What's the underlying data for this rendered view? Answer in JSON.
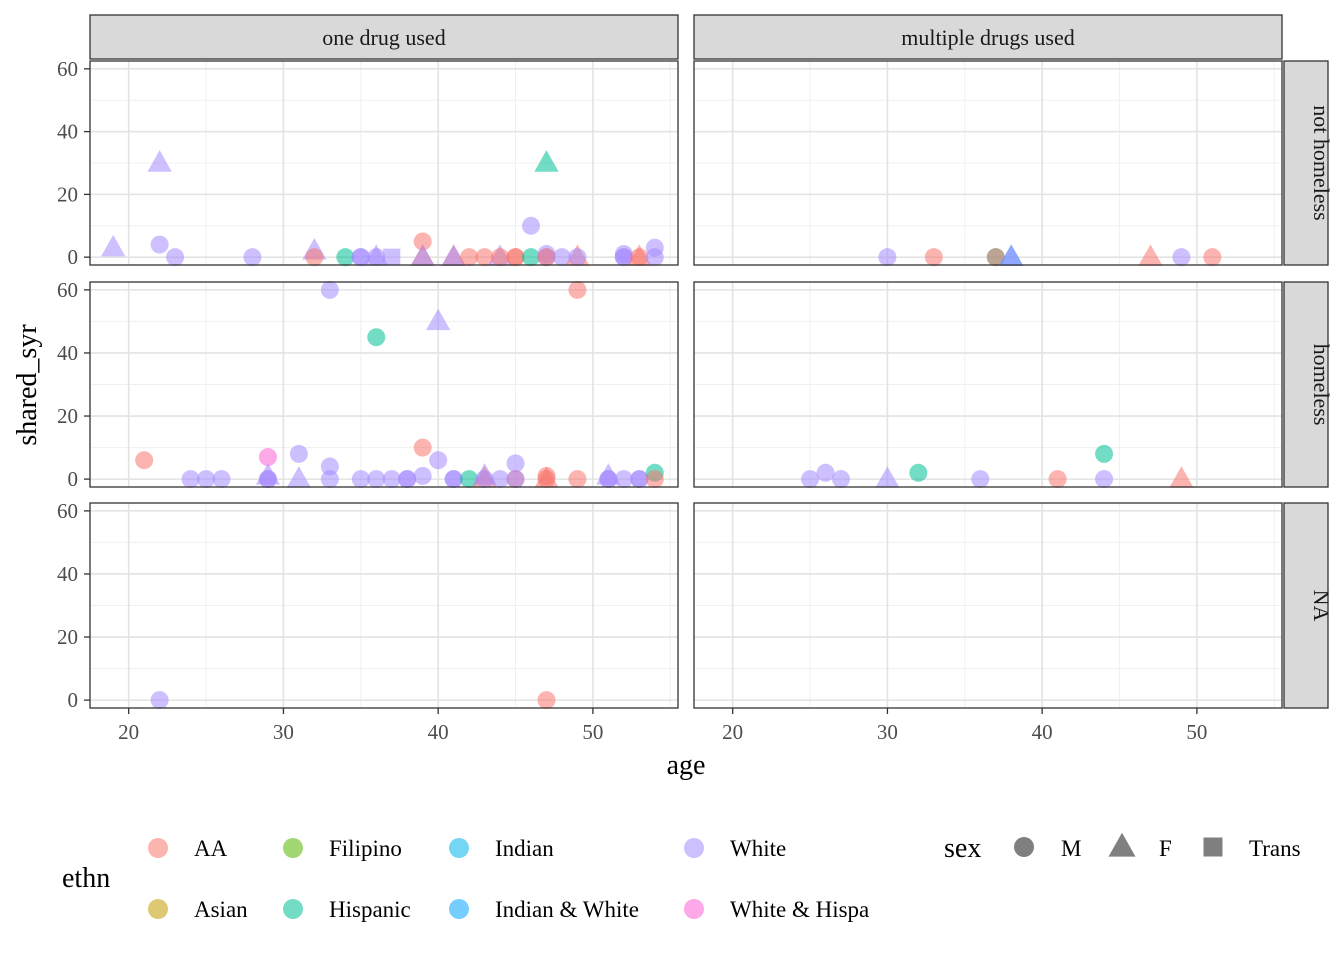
{
  "chart_data": {
    "type": "scatter",
    "xlabel": "age",
    "ylabel": "shared_syr",
    "xlim": [
      17.5,
      55.5
    ],
    "ylim": [
      -2.5,
      62.5
    ],
    "x_ticks": [
      20,
      30,
      40,
      50
    ],
    "y_ticks": [
      0,
      20,
      40,
      60
    ],
    "grid": true,
    "point_alpha": 0.55,
    "facet_cols": [
      "one drug used",
      "multiple drugs used"
    ],
    "facet_rows": [
      "not homeless",
      "homeless",
      "NA"
    ],
    "color_legend": {
      "title": "ethn",
      "position": "bottom",
      "items": [
        {
          "label": "AA",
          "color": "#F8766D"
        },
        {
          "label": "Asian",
          "color": "#C49A00"
        },
        {
          "label": "Filipino",
          "color": "#53B400"
        },
        {
          "label": "Hispanic",
          "color": "#00C094"
        },
        {
          "label": "Indian",
          "color": "#00B6EB"
        },
        {
          "label": "Indian & White",
          "color": "#06A4FF"
        },
        {
          "label": "White",
          "color": "#A58AFF"
        },
        {
          "label": "White & Hispa",
          "color": "#FB61D7"
        }
      ]
    },
    "shape_legend": {
      "title": "sex",
      "items": [
        {
          "label": "M",
          "shape": "circle"
        },
        {
          "label": "F",
          "shape": "triangle"
        },
        {
          "label": "Trans",
          "shape": "square"
        }
      ]
    },
    "panels": [
      {
        "col": 0,
        "row": 0,
        "points": [
          {
            "x": 19,
            "y": 3,
            "e": "White",
            "s": "F"
          },
          {
            "x": 22,
            "y": 30,
            "e": "White",
            "s": "F"
          },
          {
            "x": 22,
            "y": 4,
            "e": "White",
            "s": "M"
          },
          {
            "x": 23,
            "y": 0,
            "e": "White",
            "s": "M"
          },
          {
            "x": 28,
            "y": 0,
            "e": "White",
            "s": "M"
          },
          {
            "x": 32,
            "y": 2,
            "e": "White",
            "s": "F"
          },
          {
            "x": 32,
            "y": 0,
            "e": "AA",
            "s": "M"
          },
          {
            "x": 34,
            "y": 0,
            "e": "Hispanic",
            "s": "M"
          },
          {
            "x": 35,
            "y": 0,
            "e": "White",
            "s": "M"
          },
          {
            "x": 35,
            "y": 0,
            "e": "White",
            "s": "M"
          },
          {
            "x": 36,
            "y": 0,
            "e": "White",
            "s": "F"
          },
          {
            "x": 36,
            "y": 0,
            "e": "White",
            "s": "M"
          },
          {
            "x": 37,
            "y": 0,
            "e": "White",
            "s": "Trans"
          },
          {
            "x": 39,
            "y": 5,
            "e": "AA",
            "s": "M"
          },
          {
            "x": 39,
            "y": 0,
            "e": "AA",
            "s": "F"
          },
          {
            "x": 39,
            "y": 0,
            "e": "White",
            "s": "F"
          },
          {
            "x": 41,
            "y": 0,
            "e": "AA",
            "s": "F"
          },
          {
            "x": 41,
            "y": 0,
            "e": "White",
            "s": "F"
          },
          {
            "x": 42,
            "y": 0,
            "e": "AA",
            "s": "M"
          },
          {
            "x": 43,
            "y": 0,
            "e": "AA",
            "s": "M"
          },
          {
            "x": 44,
            "y": 0,
            "e": "White",
            "s": "F"
          },
          {
            "x": 44,
            "y": 0,
            "e": "AA",
            "s": "M"
          },
          {
            "x": 45,
            "y": 0,
            "e": "AA",
            "s": "M"
          },
          {
            "x": 45,
            "y": 0,
            "e": "AA",
            "s": "M"
          },
          {
            "x": 46,
            "y": 10,
            "e": "White",
            "s": "M"
          },
          {
            "x": 46,
            "y": 0,
            "e": "Hispanic",
            "s": "M"
          },
          {
            "x": 47,
            "y": 30,
            "e": "Hispanic",
            "s": "F"
          },
          {
            "x": 47,
            "y": 1,
            "e": "White",
            "s": "M"
          },
          {
            "x": 47,
            "y": 0,
            "e": "White",
            "s": "M"
          },
          {
            "x": 47,
            "y": 0,
            "e": "AA",
            "s": "M"
          },
          {
            "x": 48,
            "y": 0,
            "e": "White",
            "s": "M"
          },
          {
            "x": 49,
            "y": 0,
            "e": "AA",
            "s": "F"
          },
          {
            "x": 49,
            "y": 0,
            "e": "White",
            "s": "M"
          },
          {
            "x": 52,
            "y": 1,
            "e": "White",
            "s": "M"
          },
          {
            "x": 52,
            "y": 0,
            "e": "White",
            "s": "M"
          },
          {
            "x": 52,
            "y": 0,
            "e": "White",
            "s": "M"
          },
          {
            "x": 53,
            "y": 0,
            "e": "AA",
            "s": "F"
          },
          {
            "x": 53,
            "y": 0,
            "e": "AA",
            "s": "M"
          },
          {
            "x": 54,
            "y": 3,
            "e": "White",
            "s": "M"
          },
          {
            "x": 54,
            "y": 0,
            "e": "White",
            "s": "M"
          }
        ]
      },
      {
        "col": 1,
        "row": 0,
        "points": [
          {
            "x": 30,
            "y": 0,
            "e": "White",
            "s": "M"
          },
          {
            "x": 33,
            "y": 0,
            "e": "AA",
            "s": "M"
          },
          {
            "x": 37,
            "y": 0,
            "e": "Hispanic",
            "s": "M"
          },
          {
            "x": 37,
            "y": 0,
            "e": "AA",
            "s": "M"
          },
          {
            "x": 38,
            "y": 0,
            "e": "Indian & White",
            "s": "F"
          },
          {
            "x": 38,
            "y": 0,
            "e": "White",
            "s": "F"
          },
          {
            "x": 47,
            "y": 0,
            "e": "AA",
            "s": "F"
          },
          {
            "x": 49,
            "y": 0,
            "e": "White",
            "s": "M"
          },
          {
            "x": 51,
            "y": 0,
            "e": "AA",
            "s": "M"
          }
        ]
      },
      {
        "col": 0,
        "row": 1,
        "points": [
          {
            "x": 21,
            "y": 6,
            "e": "AA",
            "s": "M"
          },
          {
            "x": 24,
            "y": 0,
            "e": "White",
            "s": "M"
          },
          {
            "x": 25,
            "y": 0,
            "e": "White",
            "s": "M"
          },
          {
            "x": 26,
            "y": 0,
            "e": "White",
            "s": "M"
          },
          {
            "x": 29,
            "y": 7,
            "e": "White & Hispa",
            "s": "M"
          },
          {
            "x": 29,
            "y": 1,
            "e": "White",
            "s": "F"
          },
          {
            "x": 29,
            "y": 0,
            "e": "White",
            "s": "M"
          },
          {
            "x": 29,
            "y": 0,
            "e": "White",
            "s": "M"
          },
          {
            "x": 31,
            "y": 8,
            "e": "White",
            "s": "M"
          },
          {
            "x": 31,
            "y": 0,
            "e": "White",
            "s": "F"
          },
          {
            "x": 33,
            "y": 60,
            "e": "White",
            "s": "M"
          },
          {
            "x": 33,
            "y": 4,
            "e": "White",
            "s": "M"
          },
          {
            "x": 33,
            "y": 0,
            "e": "White",
            "s": "M"
          },
          {
            "x": 35,
            "y": 0,
            "e": "White",
            "s": "M"
          },
          {
            "x": 36,
            "y": 45,
            "e": "Hispanic",
            "s": "M"
          },
          {
            "x": 36,
            "y": 0,
            "e": "White",
            "s": "M"
          },
          {
            "x": 37,
            "y": 0,
            "e": "White",
            "s": "M"
          },
          {
            "x": 38,
            "y": 0,
            "e": "White",
            "s": "M"
          },
          {
            "x": 38,
            "y": 0,
            "e": "White",
            "s": "M"
          },
          {
            "x": 39,
            "y": 10,
            "e": "AA",
            "s": "M"
          },
          {
            "x": 39,
            "y": 1,
            "e": "White",
            "s": "M"
          },
          {
            "x": 40,
            "y": 50,
            "e": "White",
            "s": "F"
          },
          {
            "x": 40,
            "y": 6,
            "e": "White",
            "s": "M"
          },
          {
            "x": 41,
            "y": 0,
            "e": "White",
            "s": "M"
          },
          {
            "x": 41,
            "y": 0,
            "e": "White",
            "s": "M"
          },
          {
            "x": 42,
            "y": 0,
            "e": "Hispanic",
            "s": "M"
          },
          {
            "x": 43,
            "y": 1,
            "e": "White",
            "s": "F"
          },
          {
            "x": 43,
            "y": 0,
            "e": "AA",
            "s": "F"
          },
          {
            "x": 43,
            "y": 0,
            "e": "White",
            "s": "M"
          },
          {
            "x": 44,
            "y": 0,
            "e": "White",
            "s": "M"
          },
          {
            "x": 45,
            "y": 5,
            "e": "White",
            "s": "M"
          },
          {
            "x": 45,
            "y": 0,
            "e": "AA",
            "s": "M"
          },
          {
            "x": 45,
            "y": 0,
            "e": "White",
            "s": "M"
          },
          {
            "x": 47,
            "y": 1,
            "e": "AA",
            "s": "M"
          },
          {
            "x": 47,
            "y": 0,
            "e": "AA",
            "s": "F"
          },
          {
            "x": 47,
            "y": 0,
            "e": "AA",
            "s": "M"
          },
          {
            "x": 49,
            "y": 60,
            "e": "AA",
            "s": "M"
          },
          {
            "x": 49,
            "y": 0,
            "e": "AA",
            "s": "M"
          },
          {
            "x": 51,
            "y": 1,
            "e": "White",
            "s": "F"
          },
          {
            "x": 51,
            "y": 0,
            "e": "White",
            "s": "M"
          },
          {
            "x": 51,
            "y": 0,
            "e": "White",
            "s": "M"
          },
          {
            "x": 52,
            "y": 0,
            "e": "White",
            "s": "M"
          },
          {
            "x": 53,
            "y": 0,
            "e": "White",
            "s": "M"
          },
          {
            "x": 53,
            "y": 0,
            "e": "White",
            "s": "M"
          },
          {
            "x": 54,
            "y": 2,
            "e": "Hispanic",
            "s": "M"
          },
          {
            "x": 54,
            "y": 0,
            "e": "AA",
            "s": "M"
          }
        ]
      },
      {
        "col": 1,
        "row": 1,
        "points": [
          {
            "x": 25,
            "y": 0,
            "e": "White",
            "s": "M"
          },
          {
            "x": 26,
            "y": 2,
            "e": "White",
            "s": "M"
          },
          {
            "x": 27,
            "y": 0,
            "e": "White",
            "s": "M"
          },
          {
            "x": 30,
            "y": 0,
            "e": "White",
            "s": "F"
          },
          {
            "x": 32,
            "y": 2,
            "e": "Hispanic",
            "s": "M"
          },
          {
            "x": 36,
            "y": 0,
            "e": "White",
            "s": "M"
          },
          {
            "x": 41,
            "y": 0,
            "e": "AA",
            "s": "M"
          },
          {
            "x": 44,
            "y": 8,
            "e": "Hispanic",
            "s": "M"
          },
          {
            "x": 44,
            "y": 0,
            "e": "White",
            "s": "M"
          },
          {
            "x": 49,
            "y": 0,
            "e": "AA",
            "s": "F"
          }
        ]
      },
      {
        "col": 0,
        "row": 2,
        "points": [
          {
            "x": 22,
            "y": 0,
            "e": "White",
            "s": "M"
          },
          {
            "x": 47,
            "y": 0,
            "e": "AA",
            "s": "M"
          }
        ]
      },
      {
        "col": 1,
        "row": 2,
        "points": []
      }
    ]
  }
}
